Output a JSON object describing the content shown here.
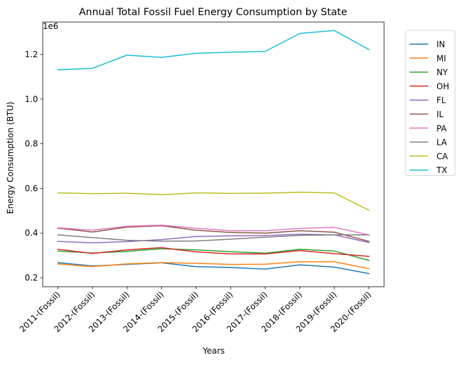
{
  "chart_data": {
    "type": "line",
    "title": "Annual Total Fossil Fuel Energy Consumption by State",
    "xlabel": "Years",
    "ylabel": "Energy Consumption (BTU)",
    "y_offset_label": "1e6",
    "y_scale": 1000000,
    "ylim": [
      160000,
      1345000
    ],
    "yticks": [
      200000,
      400000,
      600000,
      800000,
      1000000,
      1200000
    ],
    "ytick_labels": [
      "0.2",
      "0.4",
      "0.6",
      "0.8",
      "1.0",
      "1.2"
    ],
    "grid": false,
    "legend_position": "outside-top-right",
    "categories": [
      "2011-(Fossil)",
      "2012-(Fossil)",
      "2013-(Fossil)",
      "2014-(Fossil)",
      "2015-(Fossil)",
      "2016-(Fossil)",
      "2017-(Fossil)",
      "2018-(Fossil)",
      "2019-(Fossil)",
      "2020-(Fossil)"
    ],
    "series": [
      {
        "name": "IN",
        "color": "#1f77b4",
        "values": [
          268000,
          253000,
          260000,
          267000,
          250000,
          246000,
          239000,
          258000,
          248000,
          219000
        ]
      },
      {
        "name": "MI",
        "color": "#ff7f0e",
        "values": [
          262000,
          250000,
          262000,
          268000,
          265000,
          260000,
          261000,
          272000,
          272000,
          241000
        ]
      },
      {
        "name": "NY",
        "color": "#2ca02c",
        "values": [
          320000,
          311000,
          318000,
          330000,
          325000,
          317000,
          310000,
          328000,
          320000,
          278000
        ]
      },
      {
        "name": "OH",
        "color": "#d62728",
        "values": [
          328000,
          309000,
          325000,
          335000,
          316000,
          307000,
          307000,
          322000,
          308000,
          296000
        ]
      },
      {
        "name": "FL",
        "color": "#9467bd",
        "values": [
          363000,
          357000,
          362000,
          371000,
          385000,
          388000,
          389000,
          395000,
          392000,
          358000
        ]
      },
      {
        "name": "IL",
        "color": "#8c564b",
        "values": [
          422000,
          405000,
          427000,
          433000,
          413000,
          403000,
          400000,
          411000,
          404000,
          363000
        ]
      },
      {
        "name": "PA",
        "color": "#e377c2",
        "values": [
          424000,
          413000,
          431000,
          436000,
          422000,
          411000,
          411000,
          421000,
          426000,
          392000
        ]
      },
      {
        "name": "LA",
        "color": "#7f7f7f",
        "values": [
          392000,
          380000,
          368000,
          364000,
          365000,
          373000,
          382000,
          390000,
          392000,
          392000
        ]
      },
      {
        "name": "CA",
        "color": "#bcbd22",
        "values": [
          580000,
          577000,
          579000,
          572000,
          580000,
          578000,
          579000,
          583000,
          580000,
          503000
        ]
      },
      {
        "name": "TX",
        "color": "#17becf",
        "values": [
          1131000,
          1138000,
          1197000,
          1187000,
          1205000,
          1210000,
          1214000,
          1294000,
          1307000,
          1222000
        ]
      }
    ]
  }
}
